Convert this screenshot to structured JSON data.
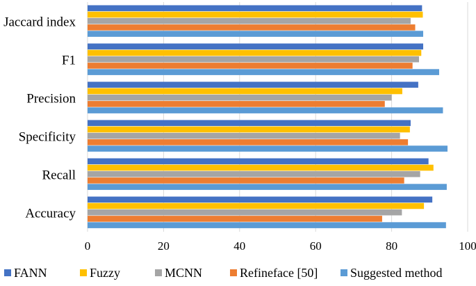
{
  "chart_data": {
    "type": "bar",
    "orientation": "horizontal",
    "title": "",
    "xlabel": "",
    "ylabel": "",
    "xlim": [
      0,
      100
    ],
    "x_ticks": [
      0,
      20,
      40,
      60,
      80,
      100
    ],
    "grid": true,
    "legend_position": "bottom",
    "categories": [
      "Jaccard index",
      "F1",
      "Precision",
      "Specificity",
      "Recall",
      "Accuracy"
    ],
    "series": [
      {
        "name": "FANN",
        "color": "#4472C4",
        "values": [
          88.0,
          88.3,
          87.0,
          85.0,
          89.7,
          90.7
        ]
      },
      {
        "name": "Fuzzy",
        "color": "#FFC000",
        "values": [
          88.2,
          87.8,
          82.8,
          84.8,
          91.0,
          88.5
        ]
      },
      {
        "name": "MCNN",
        "color": "#A5A5A5",
        "values": [
          85.0,
          87.2,
          80.0,
          82.2,
          87.5,
          82.7
        ]
      },
      {
        "name": "Refineface [50]",
        "color": "#ED7D31",
        "values": [
          86.2,
          85.5,
          78.2,
          84.3,
          83.3,
          77.5
        ]
      },
      {
        "name": "Suggested method",
        "color": "#5B9BD5",
        "values": [
          88.3,
          92.5,
          93.5,
          94.7,
          94.5,
          94.3
        ]
      }
    ]
  }
}
